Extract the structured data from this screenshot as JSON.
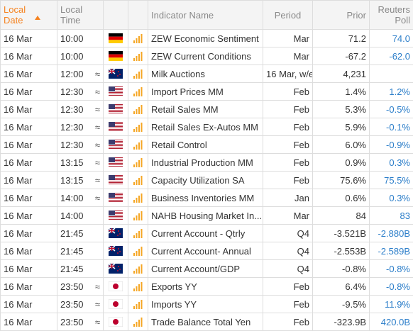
{
  "header": {
    "date": "Local Date",
    "time": "Local Time",
    "name": "Indicator Name",
    "period": "Period",
    "prior": "Prior",
    "poll": "Reuters Poll"
  },
  "rows": [
    {
      "date": "16 Mar",
      "time": "10:00",
      "name": "ZEW Economic Sentiment",
      "period": "Mar",
      "prior": "71.2",
      "poll": "74.0"
    },
    {
      "date": "16 Mar",
      "time": "10:00",
      "name": "ZEW Current Conditions",
      "period": "Mar",
      "prior": "-67.2",
      "poll": "-62.0"
    },
    {
      "date": "16 Mar",
      "time": "12:00",
      "vol": "≈",
      "name": "Milk Auctions",
      "period": "16 Mar, w/e",
      "prior": "4,231"
    },
    {
      "date": "16 Mar",
      "time": "12:30",
      "vol": "≈",
      "name": "Import Prices MM",
      "period": "Feb",
      "prior": "1.4%",
      "poll": "1.2%"
    },
    {
      "date": "16 Mar",
      "time": "12:30",
      "vol": "≈",
      "name": "Retail Sales MM",
      "period": "Feb",
      "prior": "5.3%",
      "poll": "-0.5%"
    },
    {
      "date": "16 Mar",
      "time": "12:30",
      "vol": "≈",
      "name": "Retail Sales Ex-Autos MM",
      "period": "Feb",
      "prior": "5.9%",
      "poll": "-0.1%"
    },
    {
      "date": "16 Mar",
      "time": "12:30",
      "vol": "≈",
      "name": "Retail Control",
      "period": "Feb",
      "prior": "6.0%",
      "poll": "-0.9%"
    },
    {
      "date": "16 Mar",
      "time": "13:15",
      "vol": "≈",
      "name": "Industrial Production MM",
      "period": "Feb",
      "prior": "0.9%",
      "poll": "0.3%"
    },
    {
      "date": "16 Mar",
      "time": "13:15",
      "vol": "≈",
      "name": "Capacity Utilization SA",
      "period": "Feb",
      "prior": "75.6%",
      "poll": "75.5%"
    },
    {
      "date": "16 Mar",
      "time": "14:00",
      "vol": "≈",
      "name": "Business Inventories MM",
      "period": "Jan",
      "prior": "0.6%",
      "poll": "0.3%"
    },
    {
      "date": "16 Mar",
      "time": "14:00",
      "name": "NAHB Housing Market In...",
      "period": "Mar",
      "prior": "84",
      "poll": "83"
    },
    {
      "date": "16 Mar",
      "time": "21:45",
      "name": "Current Account - Qtrly",
      "period": "Q4",
      "prior": "-3.521B",
      "poll": "-2.880B"
    },
    {
      "date": "16 Mar",
      "time": "21:45",
      "name": "Current Account- Annual",
      "period": "Q4",
      "prior": "-2.553B",
      "poll": "-2.589B"
    },
    {
      "date": "16 Mar",
      "time": "21:45",
      "name": "Current Account/GDP",
      "period": "Q4",
      "prior": "-0.8%",
      "poll": "-0.8%"
    },
    {
      "date": "16 Mar",
      "time": "23:50",
      "vol": "≈",
      "name": "Exports YY",
      "period": "Feb",
      "prior": "6.4%",
      "poll": "-0.8%"
    },
    {
      "date": "16 Mar",
      "time": "23:50",
      "vol": "≈",
      "name": "Imports YY",
      "period": "Feb",
      "prior": "-9.5%",
      "poll": "11.9%"
    },
    {
      "date": "16 Mar",
      "time": "23:50",
      "vol": "≈",
      "name": "Trade Balance Total Yen",
      "period": "Feb",
      "prior": "-323.9B",
      "poll": "420.0B"
    }
  ]
}
